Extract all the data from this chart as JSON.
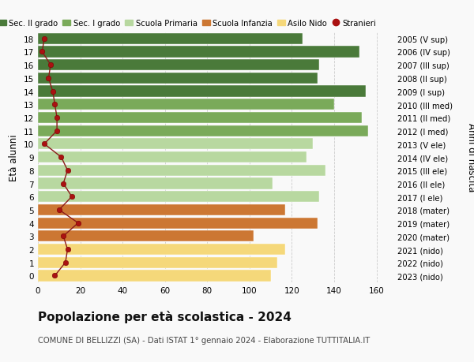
{
  "ages": [
    0,
    1,
    2,
    3,
    4,
    5,
    6,
    7,
    8,
    9,
    10,
    11,
    12,
    13,
    14,
    15,
    16,
    17,
    18
  ],
  "anni_nascita": [
    "2023 (nido)",
    "2022 (nido)",
    "2021 (nido)",
    "2020 (mater)",
    "2019 (mater)",
    "2018 (mater)",
    "2017 (I ele)",
    "2016 (II ele)",
    "2015 (III ele)",
    "2014 (IV ele)",
    "2013 (V ele)",
    "2012 (I med)",
    "2011 (II med)",
    "2010 (III med)",
    "2009 (I sup)",
    "2008 (II sup)",
    "2007 (III sup)",
    "2006 (IV sup)",
    "2005 (V sup)"
  ],
  "bar_values": [
    110,
    113,
    117,
    102,
    132,
    117,
    133,
    111,
    136,
    127,
    130,
    156,
    153,
    140,
    155,
    132,
    133,
    152,
    125
  ],
  "bar_colors": [
    "#f5d87a",
    "#f5d87a",
    "#f5d87a",
    "#cc7733",
    "#cc7733",
    "#cc7733",
    "#b8d8a0",
    "#b8d8a0",
    "#b8d8a0",
    "#b8d8a0",
    "#b8d8a0",
    "#7aaa5a",
    "#7aaa5a",
    "#7aaa5a",
    "#4a7a3a",
    "#4a7a3a",
    "#4a7a3a",
    "#4a7a3a",
    "#4a7a3a"
  ],
  "stranieri_values": [
    8,
    13,
    14,
    12,
    19,
    10,
    16,
    12,
    14,
    11,
    3,
    9,
    9,
    8,
    7,
    5,
    6,
    2,
    3
  ],
  "legend_labels": [
    "Sec. II grado",
    "Sec. I grado",
    "Scuola Primaria",
    "Scuola Infanzia",
    "Asilo Nido",
    "Stranieri"
  ],
  "legend_colors": [
    "#4a7a3a",
    "#7aaa5a",
    "#b8d8a0",
    "#cc7733",
    "#f5d87a",
    "#aa1111"
  ],
  "title": "Popolazione per età scolastica - 2024",
  "subtitle": "COMUNE DI BELLIZZI (SA) - Dati ISTAT 1° gennaio 2024 - Elaborazione TUTTITALIA.IT",
  "ylabel": "Età alunni",
  "ylabel2": "Anni di nascita",
  "xlabel_vals": [
    0,
    20,
    40,
    60,
    80,
    100,
    120,
    140,
    160
  ],
  "xlim": [
    0,
    168
  ],
  "bg_color": "#f9f9f9",
  "grid_color": "#cccccc"
}
